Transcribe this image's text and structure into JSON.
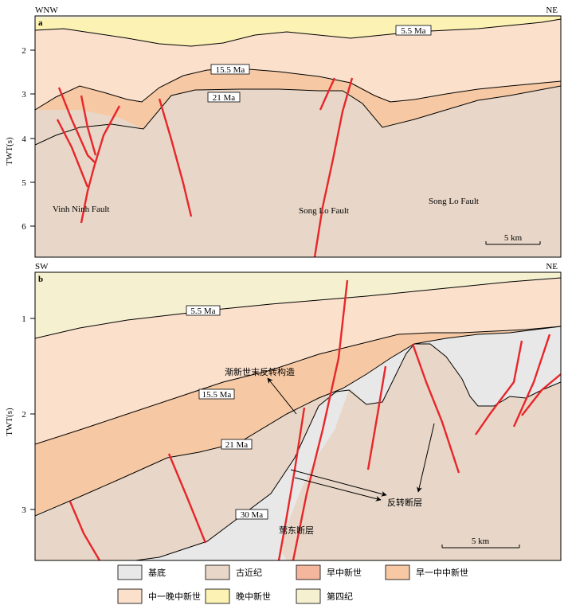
{
  "colors": {
    "basement": "#e8e8e8",
    "paleogene": "#e8d7c8",
    "early_miocene": "#f4b69c",
    "early_middle_miocene": "#f6c9a4",
    "middle_late_miocene": "#fbe0cc",
    "late_miocene": "#fbf2b4",
    "quaternary": "#f5f1d0",
    "fault": "#e8262a"
  },
  "panel_a": {
    "label": "a",
    "left_dir": "WNW",
    "right_dir": "NE",
    "y_axis_label": "TWT(s)",
    "ticks": [
      "2",
      "3",
      "4",
      "5",
      "6"
    ],
    "horizon_labels": [
      "5.5 Ma",
      "15.5 Ma",
      "21 Ma"
    ],
    "fault_labels": [
      "Vinh Ninh Fault",
      "Song Lo Fault",
      "Song Lo Fault"
    ],
    "scale": "5 km"
  },
  "panel_b": {
    "label": "b",
    "left_dir": "SW",
    "right_dir": "NE",
    "y_axis_label": "TWT(s)",
    "ticks": [
      "1",
      "2",
      "3"
    ],
    "horizon_labels": [
      "5.5 Ma",
      "15.5 Ma",
      "21 Ma",
      "30 Ma"
    ],
    "annotations": [
      "渐新世末反转构造",
      "反转断层",
      "莺东断层"
    ],
    "scale": "5 km"
  },
  "legend": [
    {
      "label": "基底",
      "color": "#e8e8e8"
    },
    {
      "label": "古近纪",
      "color": "#e8d7c8"
    },
    {
      "label": "早中新世",
      "color": "#f4b69c"
    },
    {
      "label": "早一中中新世",
      "color": "#f6c9a4"
    },
    {
      "label": "中一晚中新世",
      "color": "#fbe0cc"
    },
    {
      "label": "晚中新世",
      "color": "#fbf2b4"
    },
    {
      "label": "第四纪",
      "color": "#f5f1d0"
    }
  ]
}
